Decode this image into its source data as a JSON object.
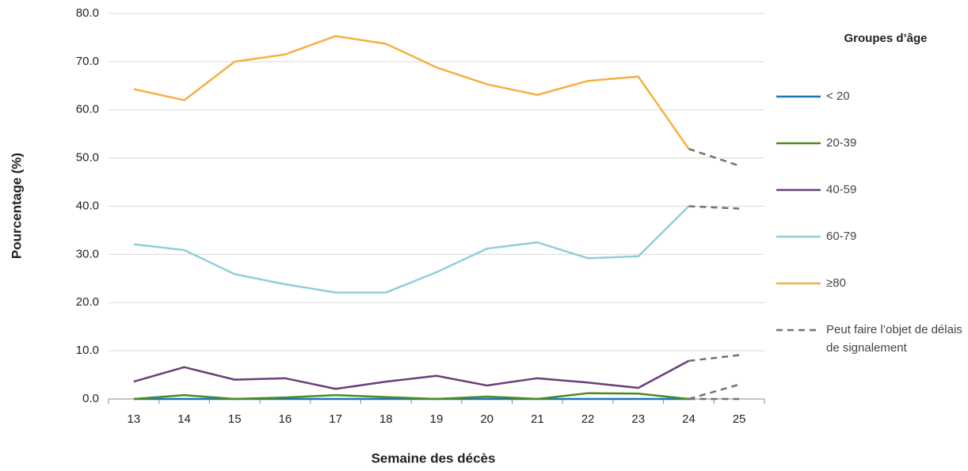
{
  "chart_data": {
    "type": "line",
    "x_label": "Semaine des décès",
    "y_label": "Pourcentage (%)",
    "legend_title": "Groupes d’âge",
    "categories": [
      "13",
      "14",
      "15",
      "16",
      "17",
      "18",
      "19",
      "20",
      "21",
      "22",
      "23",
      "24",
      "25"
    ],
    "ylim": [
      0,
      80
    ],
    "yticks": [
      {
        "value": 0,
        "label": "0.0"
      },
      {
        "value": 10,
        "label": "10.0"
      },
      {
        "value": 20,
        "label": "20.0"
      },
      {
        "value": 30,
        "label": "30.0"
      },
      {
        "value": 40,
        "label": "40.0"
      },
      {
        "value": 50,
        "label": "50.0"
      },
      {
        "value": 60,
        "label": "60.0"
      },
      {
        "value": 70,
        "label": "70.0"
      },
      {
        "value": 80,
        "label": "80.0"
      }
    ],
    "grid": true,
    "legend": "right",
    "series": [
      {
        "name": "< 20",
        "color": "#1a75bc",
        "values": [
          0,
          0,
          0,
          0,
          0,
          0,
          0,
          0,
          0,
          0,
          0,
          0,
          0
        ]
      },
      {
        "name": "20-39",
        "color": "#4a8a22",
        "values": [
          0.0,
          0.8,
          0.0,
          0.3,
          0.8,
          0.4,
          0.0,
          0.5,
          0.0,
          1.2,
          1.1,
          0.0,
          3.0
        ]
      },
      {
        "name": "40-59",
        "color": "#6b3d7a",
        "values": [
          3.6,
          6.6,
          4.0,
          4.3,
          2.1,
          3.6,
          4.8,
          2.8,
          4.3,
          3.4,
          2.3,
          7.9,
          9.1
        ]
      },
      {
        "name": "60-79",
        "color": "#92cddc",
        "values": [
          32.1,
          30.9,
          25.9,
          23.8,
          22.1,
          22.1,
          26.3,
          31.2,
          32.5,
          29.2,
          29.6,
          40.0,
          39.5
        ]
      },
      {
        "name": "≥80",
        "color": "#f5b041",
        "values": [
          64.3,
          62.0,
          70.0,
          71.5,
          75.3,
          73.7,
          68.8,
          65.3,
          63.1,
          66.0,
          66.9,
          51.9,
          48.4
        ]
      }
    ],
    "reporting_delay": {
      "name": "Peut faire l’objet de délais de signalement",
      "color": "#767171",
      "from": "24"
    }
  }
}
